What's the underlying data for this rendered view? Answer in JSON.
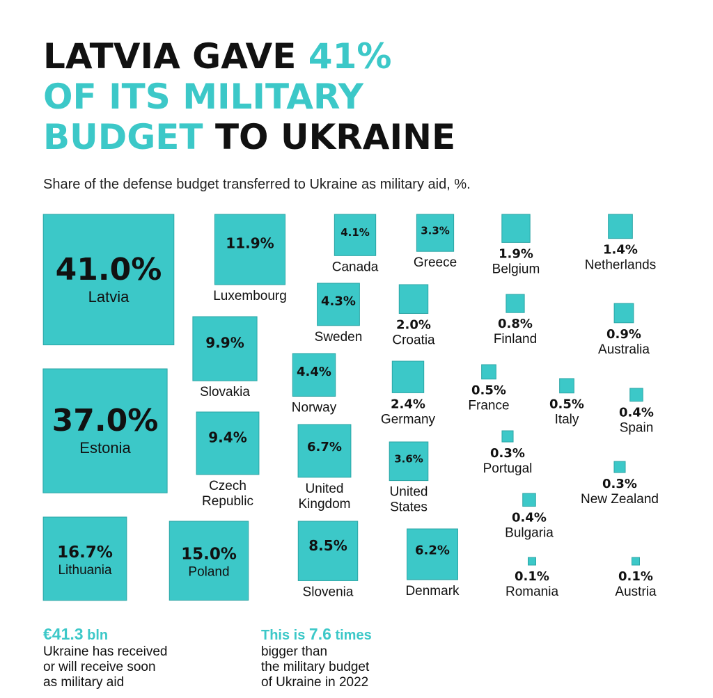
{
  "title": {
    "line1_dark": "LATVIA GAVE ",
    "line1_accent": "41%",
    "line2_accent": "OF ITS MILITARY",
    "line3_accent": "BUDGET",
    "line3_dark": " TO UKRAINE"
  },
  "subtitle": "Share of the defense budget transferred to Ukraine as military aid, %.",
  "colors": {
    "accent": "#3cc8c8",
    "square": "#3cc8c8",
    "square_border": "#2aa5a5",
    "text": "#111111"
  },
  "chart_data": {
    "type": "proportional-squares",
    "unit": "%",
    "items": [
      {
        "country": "Latvia",
        "value": 41.0,
        "label": "41.0%"
      },
      {
        "country": "Estonia",
        "value": 37.0,
        "label": "37.0%"
      },
      {
        "country": "Lithuania",
        "value": 16.7,
        "label": "16.7%"
      },
      {
        "country": "Poland",
        "value": 15.0,
        "label": "15.0%"
      },
      {
        "country": "Luxembourg",
        "value": 11.9,
        "label": "11.9%"
      },
      {
        "country": "Slovakia",
        "value": 9.9,
        "label": "9.9%"
      },
      {
        "country": "Czech Republic",
        "value": 9.4,
        "label": "9.4%"
      },
      {
        "country": "Slovenia",
        "value": 8.5,
        "label": "8.5%"
      },
      {
        "country": "United Kingdom",
        "value": 6.7,
        "label": "6.7%"
      },
      {
        "country": "Denmark",
        "value": 6.2,
        "label": "6.2%"
      },
      {
        "country": "Norway",
        "value": 4.4,
        "label": "4.4%"
      },
      {
        "country": "Sweden",
        "value": 4.3,
        "label": "4.3%"
      },
      {
        "country": "Canada",
        "value": 4.1,
        "label": "4.1%"
      },
      {
        "country": "United States",
        "value": 3.6,
        "label": "3.6%"
      },
      {
        "country": "Greece",
        "value": 3.3,
        "label": "3.3%"
      },
      {
        "country": "Germany",
        "value": 2.4,
        "label": "2.4%"
      },
      {
        "country": "Croatia",
        "value": 2.0,
        "label": "2.0%"
      },
      {
        "country": "Belgium",
        "value": 1.9,
        "label": "1.9%"
      },
      {
        "country": "Netherlands",
        "value": 1.4,
        "label": "1.4%"
      },
      {
        "country": "Australia",
        "value": 0.9,
        "label": "0.9%"
      },
      {
        "country": "Finland",
        "value": 0.8,
        "label": "0.8%"
      },
      {
        "country": "France",
        "value": 0.5,
        "label": "0.5%"
      },
      {
        "country": "Italy",
        "value": 0.5,
        "label": "0.5%"
      },
      {
        "country": "Spain",
        "value": 0.4,
        "label": "0.4%"
      },
      {
        "country": "Bulgaria",
        "value": 0.4,
        "label": "0.4%"
      },
      {
        "country": "Portugal",
        "value": 0.3,
        "label": "0.3%"
      },
      {
        "country": "New Zealand",
        "value": 0.3,
        "label": "0.3%"
      },
      {
        "country": "Romania",
        "value": 0.1,
        "label": "0.1%"
      },
      {
        "country": "Austria",
        "value": 0.1,
        "label": "0.1%"
      }
    ]
  },
  "notes": {
    "left": {
      "amount": "€41.3",
      "amount_unit": " bln",
      "lines": [
        "Ukraine has received",
        "or will receive soon",
        "as military aid"
      ]
    },
    "right": {
      "headline_pre": "This is ",
      "headline_num": "7.6",
      "headline_post": " times",
      "lines": [
        "bigger than",
        "the military budget",
        "of Ukraine in 2022"
      ]
    }
  }
}
